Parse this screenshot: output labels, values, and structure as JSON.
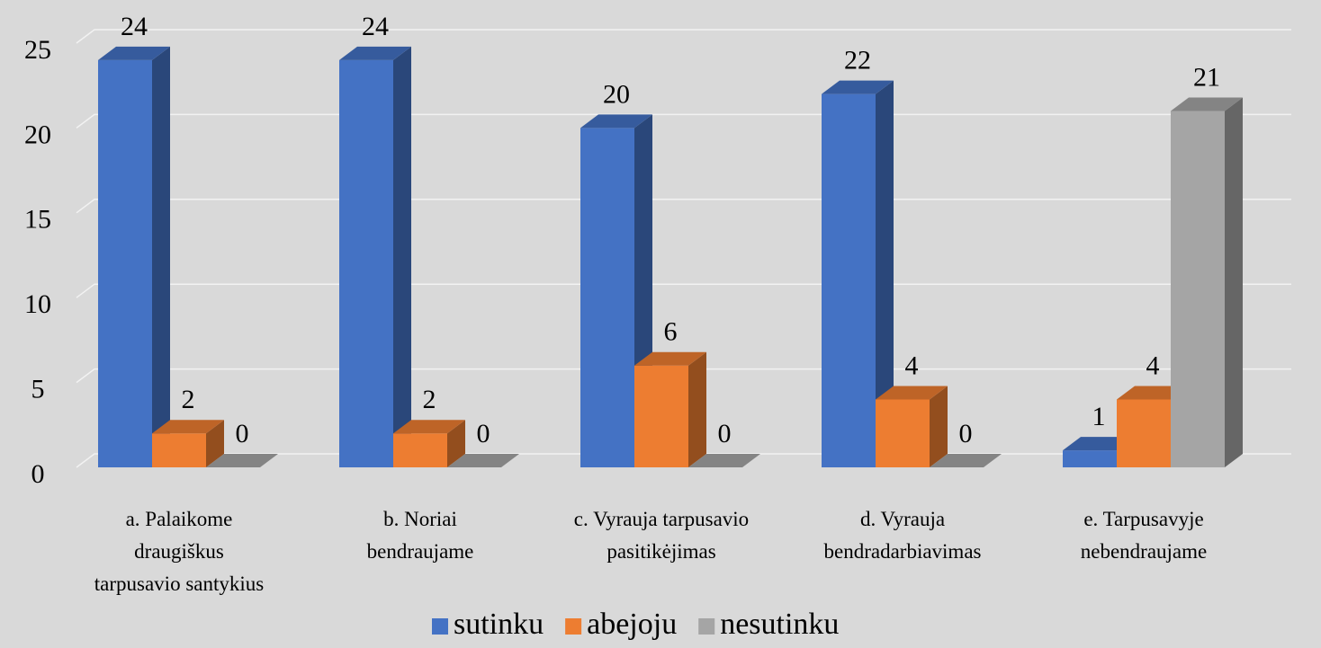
{
  "chart_data": {
    "type": "bar3d",
    "categories": [
      "a. Palaikome draugiškus tarpusavio santykius",
      "b. Noriai bendraujame",
      "c. Vyrauja tarpusavio pasitikėjimas",
      "d. Vyrauja bendradarbiavimas",
      "e. Tarpusavyje nebendraujame"
    ],
    "series": [
      {
        "name": "sutinku",
        "color": "#4472c4",
        "values": [
          24,
          24,
          20,
          22,
          1
        ]
      },
      {
        "name": "abejoju",
        "color": "#ed7d31",
        "values": [
          2,
          2,
          6,
          4,
          4
        ]
      },
      {
        "name": "nesutinku",
        "color": "#a5a5a5",
        "values": [
          0,
          0,
          0,
          0,
          21
        ]
      }
    ],
    "ylim": [
      0,
      25
    ],
    "yticks": [
      0,
      5,
      10,
      15,
      20,
      25
    ],
    "grid": true,
    "legend": "bottom"
  }
}
